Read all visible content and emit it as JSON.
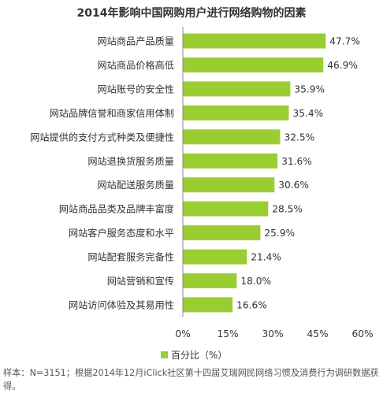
{
  "chart_data": {
    "type": "bar",
    "orientation": "horizontal",
    "title": "2014年影响中国网购用户进行网络购物的因素",
    "categories": [
      "网站商品产品质量",
      "网站商品价格高低",
      "网站账号的安全性",
      "网站品牌信誉和商家信用体制",
      "网站提供的支付方式种类及便捷性",
      "网站退换货服务质量",
      "网站配送服务质量",
      "网站商品品类及品牌丰富度",
      "网站客户服务态度和水平",
      "网站配套服务完备性",
      "网站营销和宣传",
      "网站访问体验及其易用性"
    ],
    "series": [
      {
        "name": "百分比（%）",
        "values": [
          47.7,
          46.9,
          35.9,
          35.4,
          32.5,
          31.6,
          30.6,
          28.5,
          25.9,
          21.4,
          18.0,
          16.6
        ],
        "value_labels": [
          "47.7%",
          "46.9%",
          "35.9%",
          "35.4%",
          "32.5%",
          "31.6%",
          "30.6%",
          "28.5%",
          "25.9%",
          "21.4%",
          "18.0%",
          "16.6%"
        ]
      }
    ],
    "x_ticks": [
      0,
      15,
      30,
      45,
      60
    ],
    "x_tick_labels": [
      "0%",
      "15%",
      "30%",
      "45%",
      "60%"
    ],
    "xlim": [
      0,
      60
    ],
    "grid": false,
    "legend_position": "bottom",
    "colors": {
      "bar": "#9acd32",
      "axis": "#888888",
      "text": "#333333"
    }
  },
  "footnote": "样本：N=3151；根据2014年12月iClick社区第十四届艾瑞网民网络习惯及消费行为调研数据获得。"
}
